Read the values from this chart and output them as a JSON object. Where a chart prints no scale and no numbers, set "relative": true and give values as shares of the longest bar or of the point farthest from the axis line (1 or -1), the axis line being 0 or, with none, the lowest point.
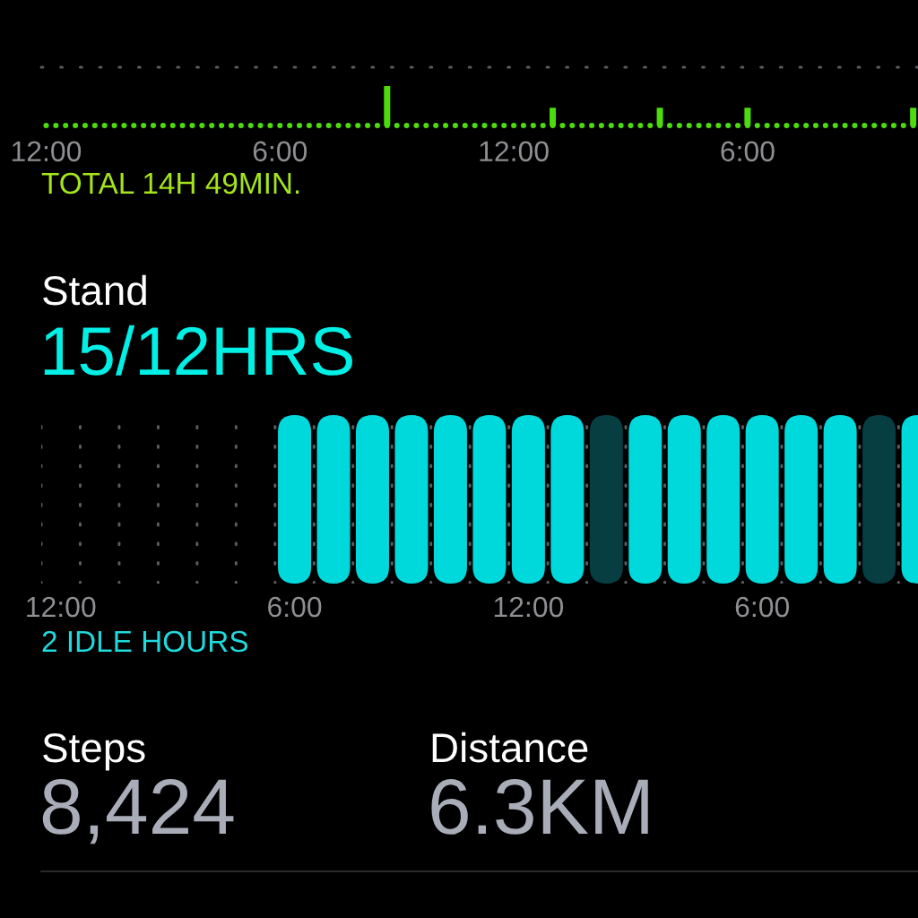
{
  "chart_data": [
    {
      "type": "bar",
      "relative": true,
      "color": "#4cdc0c",
      "categories": [
        "12:00",
        null,
        null,
        null,
        null,
        null,
        null,
        null,
        null,
        null,
        null,
        null,
        null,
        null,
        null,
        null,
        null,
        null,
        null,
        null,
        null,
        null,
        null,
        null,
        "6:00",
        null,
        null,
        null,
        null,
        null,
        null,
        null,
        null,
        null,
        null,
        null,
        null,
        null,
        null,
        null,
        null,
        null,
        null,
        null,
        null,
        null,
        null,
        null,
        "12:00",
        null,
        null,
        null,
        null,
        null,
        null,
        null,
        null,
        null,
        null,
        null,
        null,
        null,
        null,
        null,
        null,
        null,
        null,
        null,
        null,
        null,
        null,
        null,
        "6:00",
        null,
        null,
        null,
        null,
        null,
        null,
        null,
        null,
        null,
        null,
        null,
        null,
        null,
        null,
        null,
        null,
        null
      ],
      "values": [
        null,
        null,
        null,
        null,
        null,
        null,
        null,
        null,
        null,
        null,
        null,
        null,
        null,
        null,
        null,
        null,
        null,
        null,
        null,
        null,
        null,
        null,
        null,
        null,
        null,
        null,
        null,
        null,
        null,
        null,
        null,
        null,
        null,
        null,
        null,
        1,
        null,
        null,
        null,
        null,
        null,
        null,
        null,
        null,
        null,
        null,
        null,
        null,
        null,
        null,
        null,
        null,
        0.45,
        null,
        null,
        null,
        null,
        null,
        null,
        null,
        null,
        null,
        null,
        0.45,
        null,
        null,
        null,
        null,
        null,
        null,
        null,
        null,
        0.45,
        null,
        null,
        null,
        null,
        null,
        null,
        null,
        null,
        null,
        null,
        null,
        null,
        null,
        null,
        null,
        null,
        0.45
      ],
      "annotations": [
        "TOTAL 14H 49MIN."
      ]
    },
    {
      "type": "bar",
      "relative": true,
      "title": "Stand",
      "subtitle": "15/12HRS",
      "categories": [
        "12:00",
        null,
        null,
        null,
        null,
        null,
        "6:00",
        null,
        null,
        null,
        null,
        null,
        "12:00",
        null,
        null,
        null,
        null,
        null,
        "6:00",
        null,
        null,
        null,
        null
      ],
      "values": [
        null,
        null,
        null,
        null,
        null,
        null,
        1,
        1,
        1,
        1,
        1,
        1,
        1,
        1,
        1,
        1,
        1,
        1,
        1,
        1,
        1,
        1,
        1
      ],
      "colors": [
        "#00d9dc",
        "#00d9dc",
        "#00d9dc",
        "#00d9dc",
        "#00d9dc",
        "#00d9dc",
        "#00d9dc",
        "#00d9dc",
        "#00d9dc",
        "#00d9dc",
        "#00d9dc",
        "#00d9dc",
        "#00d9dc",
        "#00d9dc",
        "#063e42",
        "#00d9dc",
        "#00d9dc",
        "#00d9dc",
        "#00d9dc",
        "#00d9dc",
        "#00d9dc",
        "#063e42",
        "#00d9dc"
      ],
      "grid": "x",
      "annotations": [
        "2 IDLE HOURS"
      ]
    },
    {
      "type": "other",
      "annotations": [
        "Steps",
        "8,424",
        "Distance",
        "6.3KM"
      ]
    }
  ]
}
